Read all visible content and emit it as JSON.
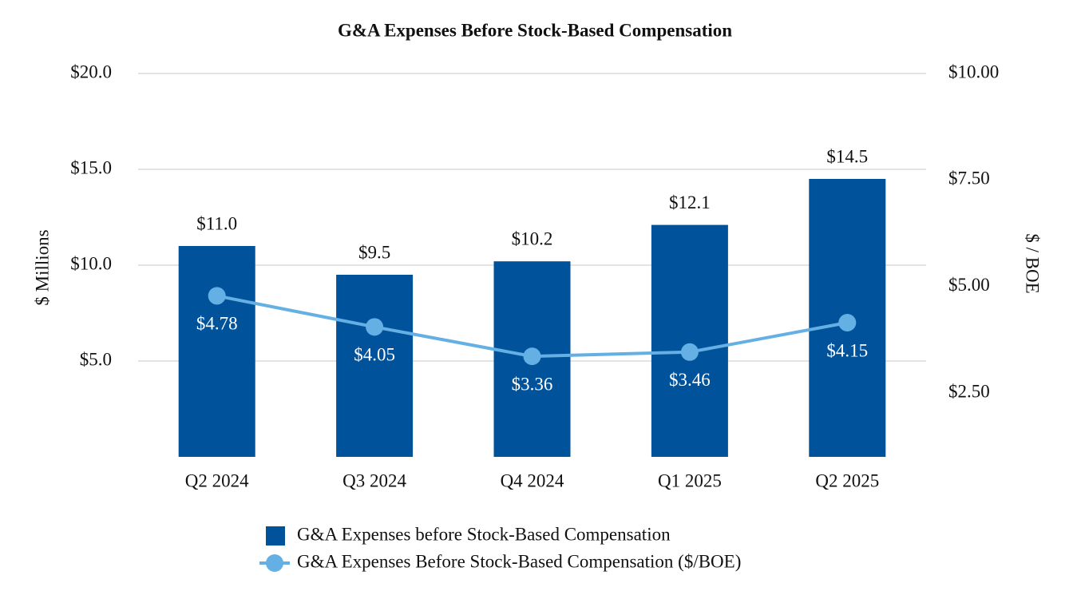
{
  "chart_data": {
    "type": "combo",
    "title": "G&A Expenses Before Stock-Based Compensation",
    "y_label": "$ Millions",
    "y2_label": "$ / BOE",
    "categories": [
      "Q2 2024",
      "Q3 2024",
      "Q4 2024",
      "Q1 2025",
      "Q2 2025"
    ],
    "series": [
      {
        "name": "G&A Expenses before Stock-Based Compensation",
        "type": "bar",
        "color": "#00529b",
        "values": [
          11.0,
          9.5,
          10.2,
          12.1,
          14.5
        ],
        "value_labels": [
          "$11.0",
          "$9.5",
          "$10.2",
          "$12.1",
          "$14.5"
        ]
      },
      {
        "name": "G&A Expenses Before Stock-Based Compensation ($/BOE)",
        "type": "line",
        "color": "#64b0e4",
        "axis": "y2",
        "values": [
          4.78,
          4.05,
          3.36,
          3.46,
          4.15
        ],
        "value_labels": [
          "$4.78",
          "$4.05",
          "$3.36",
          "$3.46",
          "$4.15"
        ]
      }
    ],
    "ylim": [
      0,
      20
    ],
    "yticks": [
      {
        "value": 5,
        "label": "$5.0"
      },
      {
        "value": 10,
        "label": "$10.0"
      },
      {
        "value": 15,
        "label": "$15.0"
      },
      {
        "value": 20,
        "label": "$20.0"
      }
    ],
    "y2lim": [
      1,
      10
    ],
    "y2ticks": [
      {
        "value": 2.5,
        "label": "$2.50"
      },
      {
        "value": 5,
        "label": "$5.00"
      },
      {
        "value": 7.5,
        "label": "$7.50"
      },
      {
        "value": 10,
        "label": "$10.00"
      }
    ],
    "grid": true,
    "legend": "bottom"
  }
}
